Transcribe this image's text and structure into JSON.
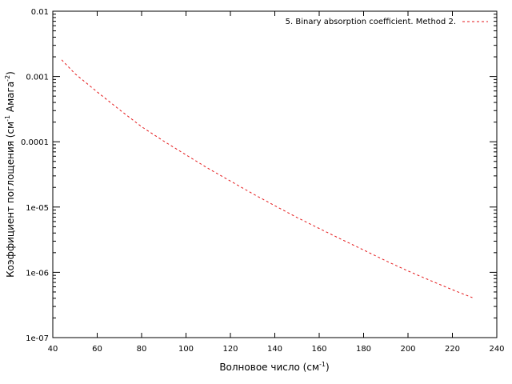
{
  "chart_data": {
    "type": "line",
    "title": "",
    "xlabel_main": "Волновое число (см",
    "xlabel_sup": "-1",
    "xlabel_end": ")",
    "ylabel_main": "Коэффициент поглощения (см",
    "ylabel_sup1": "-1",
    "ylabel_mid": " Амага",
    "ylabel_sup2": "-2",
    "ylabel_end": ")",
    "x_ticks": [
      "40",
      "60",
      "80",
      "100",
      "120",
      "140",
      "160",
      "180",
      "200",
      "220",
      "240"
    ],
    "y_ticks": [
      "1e-07",
      "1e-06",
      "1e-05",
      "0.0001",
      "0.001",
      "0.01"
    ],
    "xlim": [
      40,
      240
    ],
    "ylim": [
      1e-07,
      0.01
    ],
    "y_scale": "log",
    "grid": false,
    "legend_position": "top-right",
    "series": [
      {
        "name": "5. Binary absorption coefficient. Method 2.",
        "color": "#e41a1c",
        "line_style": "dashed",
        "x": [
          44,
          50,
          55,
          60,
          70,
          80,
          90,
          100,
          110,
          120,
          130,
          140,
          150,
          160,
          170,
          180,
          190,
          200,
          210,
          220,
          229
        ],
        "y": [
          0.0018,
          0.0011,
          0.0008,
          0.00058,
          0.00031,
          0.00017,
          0.000102,
          6.3e-05,
          3.9e-05,
          2.5e-05,
          1.6e-05,
          1.05e-05,
          6.9e-06,
          4.7e-06,
          3.2e-06,
          2.2e-06,
          1.5e-06,
          1.05e-06,
          7.5e-07,
          5.4e-07,
          4.1e-07
        ]
      }
    ]
  }
}
